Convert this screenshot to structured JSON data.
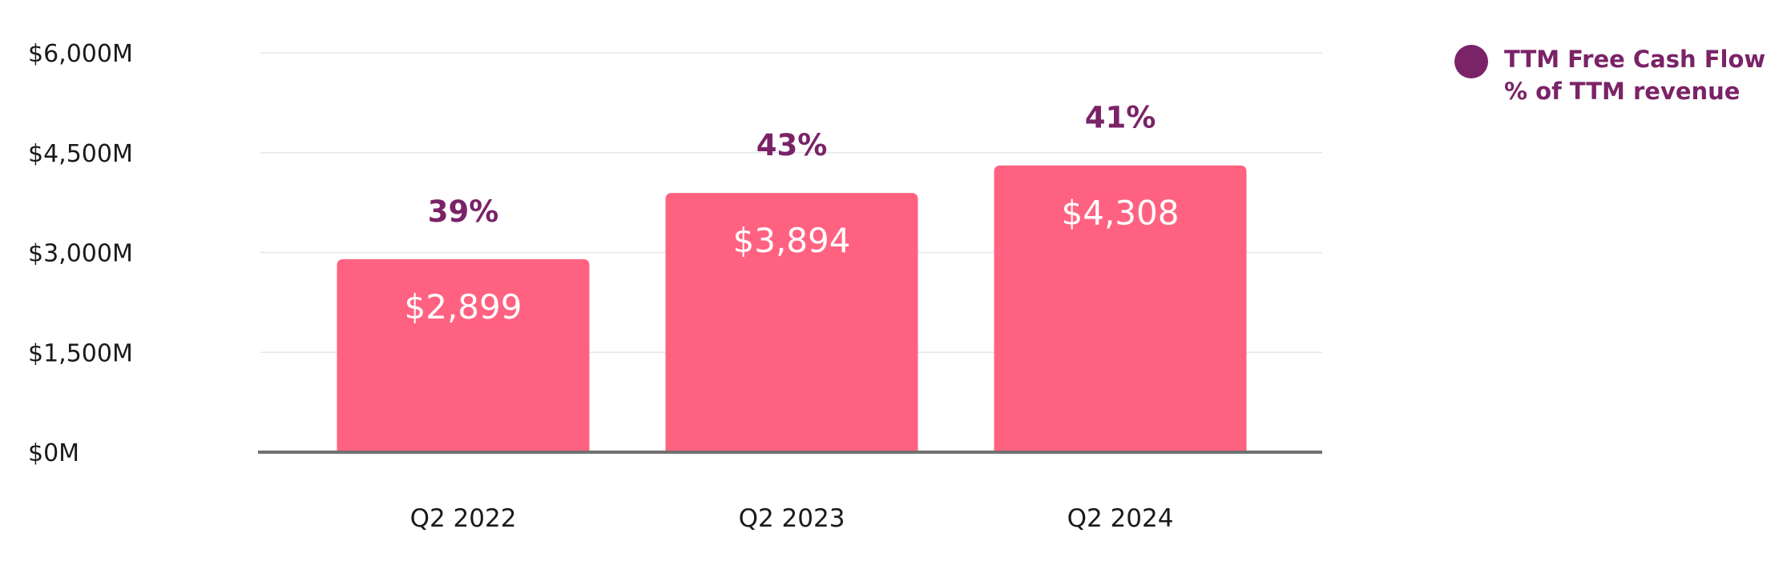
{
  "chart_data": {
    "type": "bar",
    "categories": [
      "Q2 2022",
      "Q2 2023",
      "Q2 2024"
    ],
    "series": [
      {
        "values": [
          2899,
          3894,
          4308
        ],
        "value_labels": [
          "$2,899",
          "$3,894",
          "$4,308"
        ],
        "percent_labels": [
          "39%",
          "43%",
          "41%"
        ]
      }
    ],
    "ylim": [
      0,
      6000
    ],
    "yticks": [
      0,
      1500,
      3000,
      4500,
      6000
    ],
    "ytick_labels": [
      "$0M",
      "$1,500M",
      "$3,000M",
      "$4,500M",
      "$6,000M"
    ],
    "grid": true,
    "legend": {
      "position": "top-right",
      "entries": [
        {
          "label": "TTM Free Cash Flow % of TTM revenue",
          "color": "#7a2367"
        }
      ]
    },
    "colors": {
      "bar": "#ff6281",
      "percent_label": "#7a2367",
      "legend_marker": "#7a2367"
    }
  }
}
